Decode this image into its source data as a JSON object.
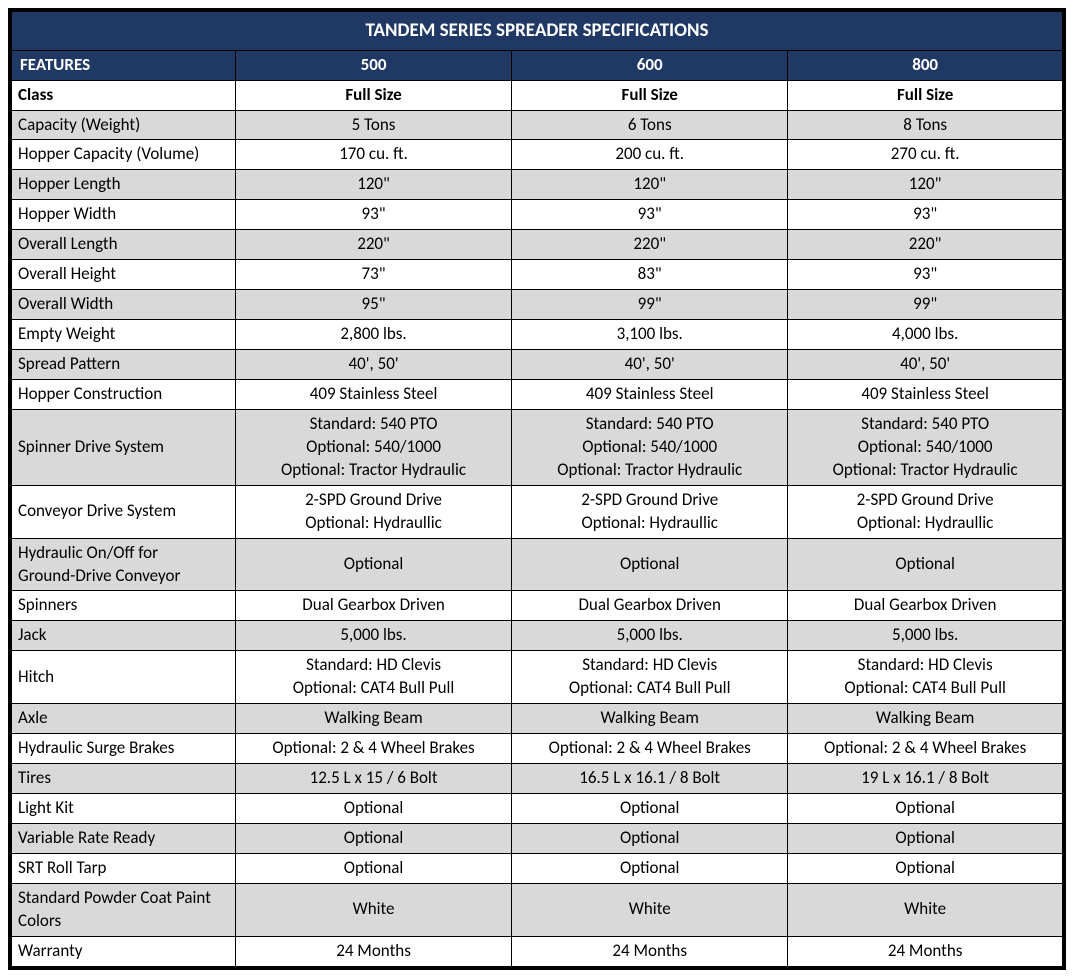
{
  "title": "TANDEM SERIES SPREADER SPECIFICATIONS",
  "colors": {
    "header_bg": "#1f3864",
    "header_fg": "#ffffff",
    "shade_bg": "#d9d9d9",
    "plain_bg": "#ffffff",
    "border": "#000000"
  },
  "columns": {
    "features_label": "FEATURES",
    "models": [
      "500",
      "600",
      "800"
    ]
  },
  "class_row": {
    "label": "Class",
    "values": [
      "Full Size",
      "Full Size",
      "Full Size"
    ]
  },
  "rows": [
    {
      "label": "Capacity (Weight)",
      "shaded": true,
      "values": [
        "5 Tons",
        "6 Tons",
        "8 Tons"
      ]
    },
    {
      "label": "Hopper Capacity (Volume)",
      "shaded": false,
      "values": [
        "170 cu. ft.",
        "200 cu. ft.",
        "270 cu. ft."
      ]
    },
    {
      "label": "Hopper Length",
      "shaded": true,
      "values": [
        "120\"",
        "120\"",
        "120\""
      ]
    },
    {
      "label": "Hopper Width",
      "shaded": false,
      "values": [
        "93\"",
        "93\"",
        "93\""
      ]
    },
    {
      "label": "Overall Length",
      "shaded": true,
      "values": [
        "220\"",
        "220\"",
        "220\""
      ]
    },
    {
      "label": "Overall Height",
      "shaded": false,
      "values": [
        "73\"",
        "83\"",
        "93\""
      ]
    },
    {
      "label": "Overall Width",
      "shaded": true,
      "values": [
        "95\"",
        "99\"",
        "99\""
      ]
    },
    {
      "label": "Empty Weight",
      "shaded": false,
      "values": [
        "2,800 lbs.",
        "3,100 lbs.",
        "4,000 lbs."
      ]
    },
    {
      "label": "Spread Pattern",
      "shaded": true,
      "values": [
        "40', 50'",
        "40', 50'",
        "40', 50'"
      ]
    },
    {
      "label": "Hopper Construction",
      "shaded": false,
      "values": [
        "409 Stainless Steel",
        "409 Stainless Steel",
        "409 Stainless Steel"
      ]
    },
    {
      "label": "Spinner Drive System",
      "shaded": true,
      "values": [
        "Standard: 540 PTO\nOptional: 540/1000\nOptional: Tractor Hydraulic",
        "Standard: 540 PTO\nOptional: 540/1000\nOptional: Tractor Hydraulic",
        "Standard: 540 PTO\nOptional: 540/1000\nOptional: Tractor Hydraulic"
      ]
    },
    {
      "label": "Conveyor Drive System",
      "shaded": false,
      "values": [
        "2-SPD Ground Drive\nOptional: Hydraullic",
        "2-SPD Ground Drive\nOptional: Hydraullic",
        "2-SPD Ground Drive\nOptional: Hydraullic"
      ]
    },
    {
      "label": "Hydraulic On/Off for\nGround-Drive Conveyor",
      "shaded": true,
      "values": [
        "Optional",
        "Optional",
        "Optional"
      ]
    },
    {
      "label": "Spinners",
      "shaded": false,
      "values": [
        "Dual Gearbox Driven",
        "Dual Gearbox Driven",
        "Dual Gearbox Driven"
      ]
    },
    {
      "label": "Jack",
      "shaded": true,
      "values": [
        "5,000 lbs.",
        "5,000 lbs.",
        "5,000 lbs."
      ]
    },
    {
      "label": "Hitch",
      "shaded": false,
      "values": [
        "Standard: HD Clevis\nOptional: CAT4 Bull Pull",
        "Standard: HD Clevis\nOptional: CAT4 Bull Pull",
        "Standard: HD Clevis\nOptional: CAT4 Bull Pull"
      ]
    },
    {
      "label": "Axle",
      "shaded": true,
      "values": [
        "Walking Beam",
        "Walking Beam",
        "Walking Beam"
      ]
    },
    {
      "label": "Hydraulic Surge Brakes",
      "shaded": false,
      "values": [
        "Optional: 2 & 4 Wheel Brakes",
        "Optional: 2 & 4 Wheel Brakes",
        "Optional: 2 & 4 Wheel Brakes"
      ]
    },
    {
      "label": "Tires",
      "shaded": true,
      "values": [
        "12.5 L x 15 / 6 Bolt",
        "16.5 L x 16.1 / 8 Bolt",
        "19 L x 16.1 / 8 Bolt"
      ]
    },
    {
      "label": "Light Kit",
      "shaded": false,
      "values": [
        "Optional",
        "Optional",
        "Optional"
      ]
    },
    {
      "label": "Variable Rate Ready",
      "shaded": true,
      "values": [
        "Optional",
        "Optional",
        "Optional"
      ]
    },
    {
      "label": "SRT Roll Tarp",
      "shaded": false,
      "values": [
        "Optional",
        "Optional",
        "Optional"
      ]
    },
    {
      "label": "Standard Powder Coat Paint\nColors",
      "shaded": true,
      "values": [
        "White",
        "White",
        "White"
      ]
    },
    {
      "label": "Warranty",
      "shaded": false,
      "values": [
        "24 Months",
        "24 Months",
        "24 Months"
      ]
    }
  ]
}
